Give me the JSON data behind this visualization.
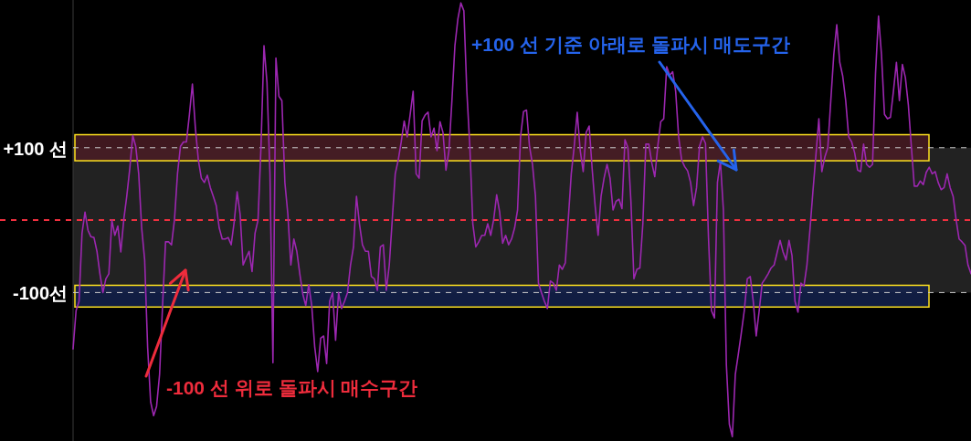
{
  "chart_data": {
    "type": "line",
    "categories": [
      null,
      null,
      null,
      null,
      null,
      null,
      null,
      null,
      null,
      null,
      null,
      null,
      null,
      null,
      null,
      null,
      null,
      null,
      null,
      null,
      null,
      null,
      null,
      null,
      null,
      null,
      null,
      null,
      null,
      null,
      null,
      null,
      null,
      null,
      null,
      null,
      null,
      null,
      null,
      null,
      null,
      null,
      null,
      null,
      null,
      null,
      null,
      null,
      null,
      null,
      null,
      null,
      null,
      null,
      null,
      null,
      null,
      null,
      null,
      null,
      null,
      null,
      null,
      null,
      null,
      null,
      null,
      null,
      null,
      null,
      null,
      null,
      null,
      null,
      null,
      null,
      null,
      null,
      null,
      null,
      null,
      null,
      null,
      null,
      null,
      null,
      null,
      null,
      null,
      null,
      null,
      null,
      null,
      null,
      null,
      null,
      null,
      null,
      null,
      null,
      null,
      null,
      null,
      null,
      null,
      null,
      null,
      null,
      null,
      null,
      null,
      null,
      null,
      null,
      null,
      null,
      null,
      null,
      null,
      null,
      null,
      null,
      null,
      null,
      null,
      null,
      null,
      null,
      null,
      null,
      null,
      null,
      null,
      null,
      null,
      null,
      null,
      null,
      null,
      null,
      null,
      null,
      null,
      null,
      null,
      null,
      null,
      null,
      null,
      null,
      null,
      null,
      null,
      null,
      null,
      null,
      null,
      null,
      null,
      null,
      null,
      null,
      null,
      null,
      null,
      null,
      null,
      null,
      null,
      null,
      null,
      null,
      null,
      null,
      null,
      null,
      null,
      null,
      null,
      null,
      null,
      null,
      null,
      null,
      null,
      null,
      null,
      null,
      null,
      null,
      null,
      null,
      null,
      null,
      null,
      null,
      null,
      null,
      null,
      null,
      null,
      null,
      null,
      null,
      null,
      null,
      null,
      null,
      null,
      null,
      null,
      null,
      null,
      null,
      null,
      null,
      null,
      null,
      null,
      null,
      null,
      null,
      null,
      null,
      null,
      null,
      null,
      null,
      null,
      null,
      null,
      null,
      null,
      null,
      null,
      null,
      null,
      null,
      null,
      null,
      null,
      null,
      null,
      null,
      null,
      null,
      null,
      null,
      null,
      null,
      null,
      null,
      null,
      null,
      null,
      null,
      null,
      null,
      null,
      null,
      null,
      null,
      null,
      null,
      null,
      null,
      null,
      null,
      null,
      null,
      null,
      null,
      null,
      null,
      null,
      null,
      null,
      null,
      null,
      null,
      null,
      null,
      null,
      null,
      null,
      null,
      null,
      null,
      null,
      null,
      null,
      null,
      null,
      null,
      null,
      null,
      null,
      null,
      null,
      null,
      null,
      null
    ],
    "series": [
      {
        "color": "#9c27b0",
        "values": [
          -178,
          -125,
          -112,
          -18,
          11,
          -14,
          -23,
          -24,
          -43,
          -74,
          -100,
          -81,
          -74,
          0,
          -21,
          -8,
          -44,
          1,
          33,
          71,
          117,
          102,
          64,
          -11,
          -55,
          -176,
          -251,
          -270,
          -257,
          -213,
          -118,
          -30,
          -30,
          -34,
          1,
          64,
          102,
          108,
          108,
          146,
          188,
          127,
          83,
          58,
          52,
          62,
          45,
          33,
          20,
          -11,
          -26,
          -26,
          -24,
          -34,
          -3,
          39,
          8,
          -62,
          -52,
          -43,
          -71,
          -18,
          0,
          102,
          241,
          190,
          64,
          -197,
          224,
          171,
          165,
          52,
          8,
          -62,
          -26,
          -43,
          -74,
          -102,
          -118,
          -89,
          -118,
          -175,
          -209,
          -163,
          -160,
          -198,
          -112,
          -100,
          -166,
          -100,
          -122,
          -112,
          -100,
          -62,
          -37,
          33,
          -5,
          -34,
          -43,
          -43,
          -78,
          -81,
          -97,
          -37,
          -34,
          -97,
          -62,
          1,
          64,
          83,
          108,
          137,
          115,
          146,
          178,
          64,
          58,
          137,
          145,
          149,
          115,
          127,
          96,
          136,
          121,
          69,
          96,
          165,
          241,
          278,
          300,
          289,
          178,
          102,
          -5,
          -37,
          -30,
          -21,
          -21,
          -5,
          -21,
          1,
          35,
          11,
          -32,
          -21,
          -34,
          -26,
          -11,
          14,
          115,
          150,
          152,
          102,
          77,
          33,
          -87,
          -100,
          -112,
          -122,
          -84,
          -87,
          -97,
          -62,
          -68,
          -59,
          1,
          64,
          102,
          149,
          96,
          67,
          121,
          130,
          71,
          20,
          -21,
          33,
          58,
          77,
          58,
          14,
          26,
          29,
          16,
          111,
          100,
          26,
          -81,
          -68,
          -66,
          -5,
          105,
          105,
          79,
          60,
          102,
          136,
          140,
          212,
          200,
          205,
          178,
          115,
          83,
          74,
          68,
          52,
          20,
          45,
          102,
          115,
          106,
          -24,
          -125,
          -135,
          52,
          81,
          14,
          -200,
          -282,
          -299,
          -213,
          -185,
          -156,
          -125,
          -81,
          -78,
          -112,
          -160,
          -125,
          -87,
          -81,
          -74,
          -66,
          -62,
          -45,
          -28,
          -44,
          -55,
          -28,
          -49,
          -112,
          -127,
          -87,
          -91,
          -62,
          -14,
          39,
          89,
          140,
          67,
          87,
          100,
          165,
          228,
          270,
          218,
          199,
          165,
          115,
          108,
          93,
          69,
          67,
          105,
          77,
          73,
          77,
          203,
          282,
          228,
          146,
          140,
          142,
          178,
          218,
          165,
          215,
          197,
          159,
          102,
          47,
          47,
          54,
          49,
          66,
          73,
          64,
          67,
          52,
          42,
          45,
          64,
          45,
          33,
          1,
          -26,
          -30,
          -35,
          -62,
          -74
        ]
      }
    ],
    "ylim": [
      -305,
      304
    ],
    "yticks": [
      {
        "value": 100,
        "label": "+100 선"
      },
      {
        "value": -100,
        "label": "-100선"
      }
    ],
    "ref_lines": [
      {
        "axis": "y",
        "value": 100,
        "color": "#cccccc",
        "line_style": "dashed"
      },
      {
        "axis": "y",
        "value": -100,
        "color": "#cccccc",
        "line_style": "dashed"
      },
      {
        "axis": "y",
        "value": 0,
        "color": "#f0303f",
        "line_style": "dashed"
      }
    ],
    "bands": [
      {
        "axis": "y",
        "from": -100,
        "to": 100,
        "color": "#222222"
      },
      {
        "axis": "y",
        "from": 82,
        "to": 118,
        "color": "#4a1c24"
      },
      {
        "axis": "y",
        "from": -120,
        "to": -90,
        "color": "#14224d"
      }
    ],
    "annotations": [
      "+100 선 기준 아래로 돌파시 매도구간",
      "-100 선 위로 돌파시 매수구간"
    ]
  }
}
